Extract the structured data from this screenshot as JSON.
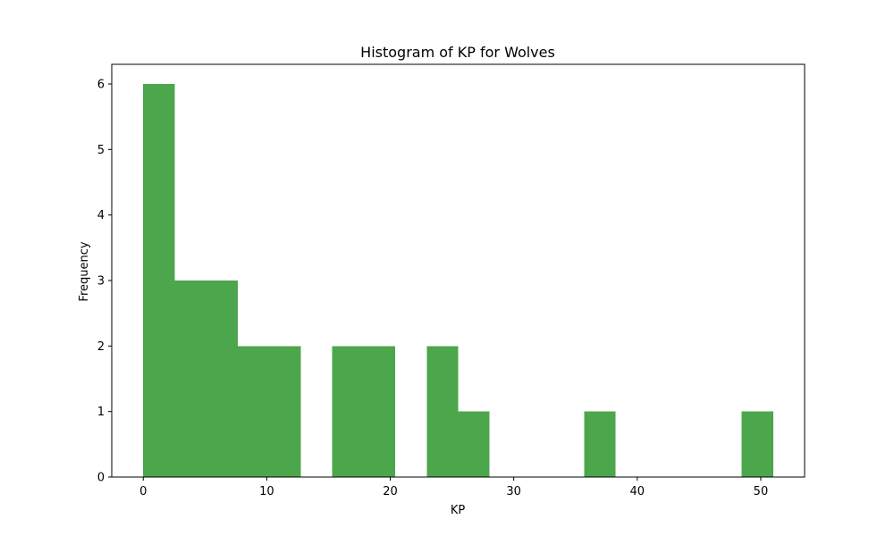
{
  "chart_data": {
    "type": "bar",
    "subtype": "histogram",
    "title": "Histogram of KP for Wolves",
    "xlabel": "KP",
    "ylabel": "Frequency",
    "bin_start": 0,
    "bin_width": 2.55,
    "counts": [
      6,
      3,
      3,
      2,
      2,
      0,
      2,
      2,
      0,
      2,
      1,
      0,
      0,
      0,
      1,
      0,
      0,
      0,
      0,
      1
    ],
    "xlim": [
      -2.55,
      53.55
    ],
    "ylim": [
      0,
      6.3
    ],
    "xticks": [
      0,
      10,
      20,
      30,
      40,
      50
    ],
    "yticks": [
      0,
      1,
      2,
      3,
      4,
      5,
      6
    ],
    "bar_color": "#4ca64c",
    "grid": false,
    "legend": "none"
  }
}
